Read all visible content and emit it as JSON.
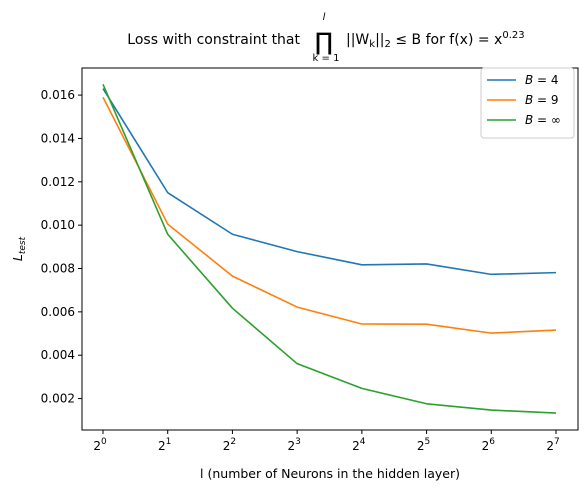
{
  "chart_data": {
    "type": "line",
    "title": {
      "prefix": "Loss with constraint that",
      "prod_symbol": "∏",
      "prod_upper": "l",
      "prod_lower": "k = 1",
      "norm_expr": "||W",
      "norm_sub": "k",
      "norm_close": "||",
      "norm_sub2": "2",
      "relation": " ≤ B for f(x) = x",
      "exponent": "0.23"
    },
    "xlabel": "l (number of Neurons in the hidden layer)",
    "ylabel": {
      "base": "L",
      "sub": "test"
    },
    "x_tick_labels": [
      {
        "base": "2",
        "exp": "0"
      },
      {
        "base": "2",
        "exp": "1"
      },
      {
        "base": "2",
        "exp": "2"
      },
      {
        "base": "2",
        "exp": "3"
      },
      {
        "base": "2",
        "exp": "4"
      },
      {
        "base": "2",
        "exp": "5"
      },
      {
        "base": "2",
        "exp": "6"
      },
      {
        "base": "2",
        "exp": "7"
      }
    ],
    "x": [
      1,
      2,
      4,
      8,
      16,
      32,
      64,
      128
    ],
    "x_scale": "log2",
    "y_ticks": [
      "0.002",
      "0.004",
      "0.006",
      "0.008",
      "0.010",
      "0.012",
      "0.014",
      "0.016"
    ],
    "ylim": [
      0.00055,
      0.01725
    ],
    "grid": false,
    "legend_position": "top-right",
    "series": [
      {
        "name": "B = 4",
        "name_var": "B",
        "name_rel": " = ",
        "name_val": "4",
        "color": "#1f77b4",
        "values": [
          0.0163,
          0.0115,
          0.00958,
          0.00878,
          0.00817,
          0.00821,
          0.00773,
          0.00781
        ]
      },
      {
        "name": "B = 9",
        "name_var": "B",
        "name_rel": " = ",
        "name_val": "9",
        "color": "#ff7f0e",
        "values": [
          0.0159,
          0.01005,
          0.00765,
          0.00622,
          0.00544,
          0.00543,
          0.00502,
          0.00516
        ]
      },
      {
        "name": "B = ∞",
        "name_var": "B",
        "name_rel": " = ",
        "name_val": "∞",
        "color": "#2ca02c",
        "values": [
          0.0165,
          0.00958,
          0.00617,
          0.00361,
          0.00247,
          0.00176,
          0.00147,
          0.00133
        ]
      }
    ]
  }
}
